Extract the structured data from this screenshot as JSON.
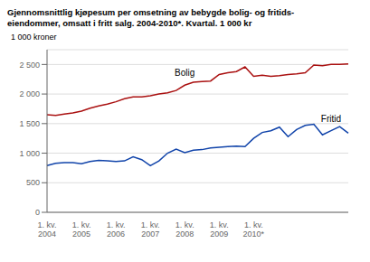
{
  "chart_data": {
    "type": "line",
    "title": "Gjennomsnittlig kjøpesum per omsetning av bebygde bolig- og fritids-\neiendommer, omsatt i fritt salg. 2004-2010*. Kvartal. 1 000 kr",
    "ylabel": "1 000 kroner",
    "categories": [
      "1. kv.\n2004",
      null,
      null,
      null,
      "1. kv.\n2005",
      null,
      null,
      null,
      "1. kv.\n2006",
      null,
      null,
      null,
      "1. kv.\n2007",
      null,
      null,
      null,
      "1. kv.\n2008",
      null,
      null,
      null,
      "1. kv.\n2009",
      null,
      null,
      null,
      "1. kv.\n2010*",
      null,
      null,
      null,
      null,
      null,
      null,
      null,
      null,
      null,
      null,
      null
    ],
    "series": [
      {
        "name": "Bolig",
        "color": "#aa1111",
        "values": [
          1650,
          1640,
          1660,
          1680,
          1710,
          1760,
          1800,
          1830,
          1870,
          1920,
          1950,
          1950,
          1970,
          2000,
          2020,
          2060,
          2150,
          2200,
          2210,
          2220,
          2330,
          2360,
          2380,
          2460,
          2300,
          2320,
          2300,
          2310,
          2330,
          2340,
          2360,
          2490,
          2480,
          2500,
          2500,
          2510
        ]
      },
      {
        "name": "Fritid",
        "color": "#1144aa",
        "values": [
          790,
          830,
          840,
          840,
          820,
          860,
          880,
          870,
          860,
          870,
          940,
          890,
          790,
          870,
          1000,
          1070,
          1010,
          1050,
          1060,
          1090,
          1100,
          1110,
          1120,
          1110,
          1250,
          1350,
          1380,
          1440,
          1280,
          1400,
          1470,
          1490,
          1310,
          1380,
          1450,
          1340
        ]
      }
    ],
    "ylim": [
      0,
      2750
    ],
    "yticks": [
      0,
      500,
      {
        "value": 1000,
        "label": "1 000"
      },
      {
        "value": 1500,
        "label": "1 500"
      },
      {
        "value": 2000,
        "label": "2 000"
      },
      {
        "value": 2500,
        "label": "2 500"
      }
    ],
    "grid": true
  }
}
